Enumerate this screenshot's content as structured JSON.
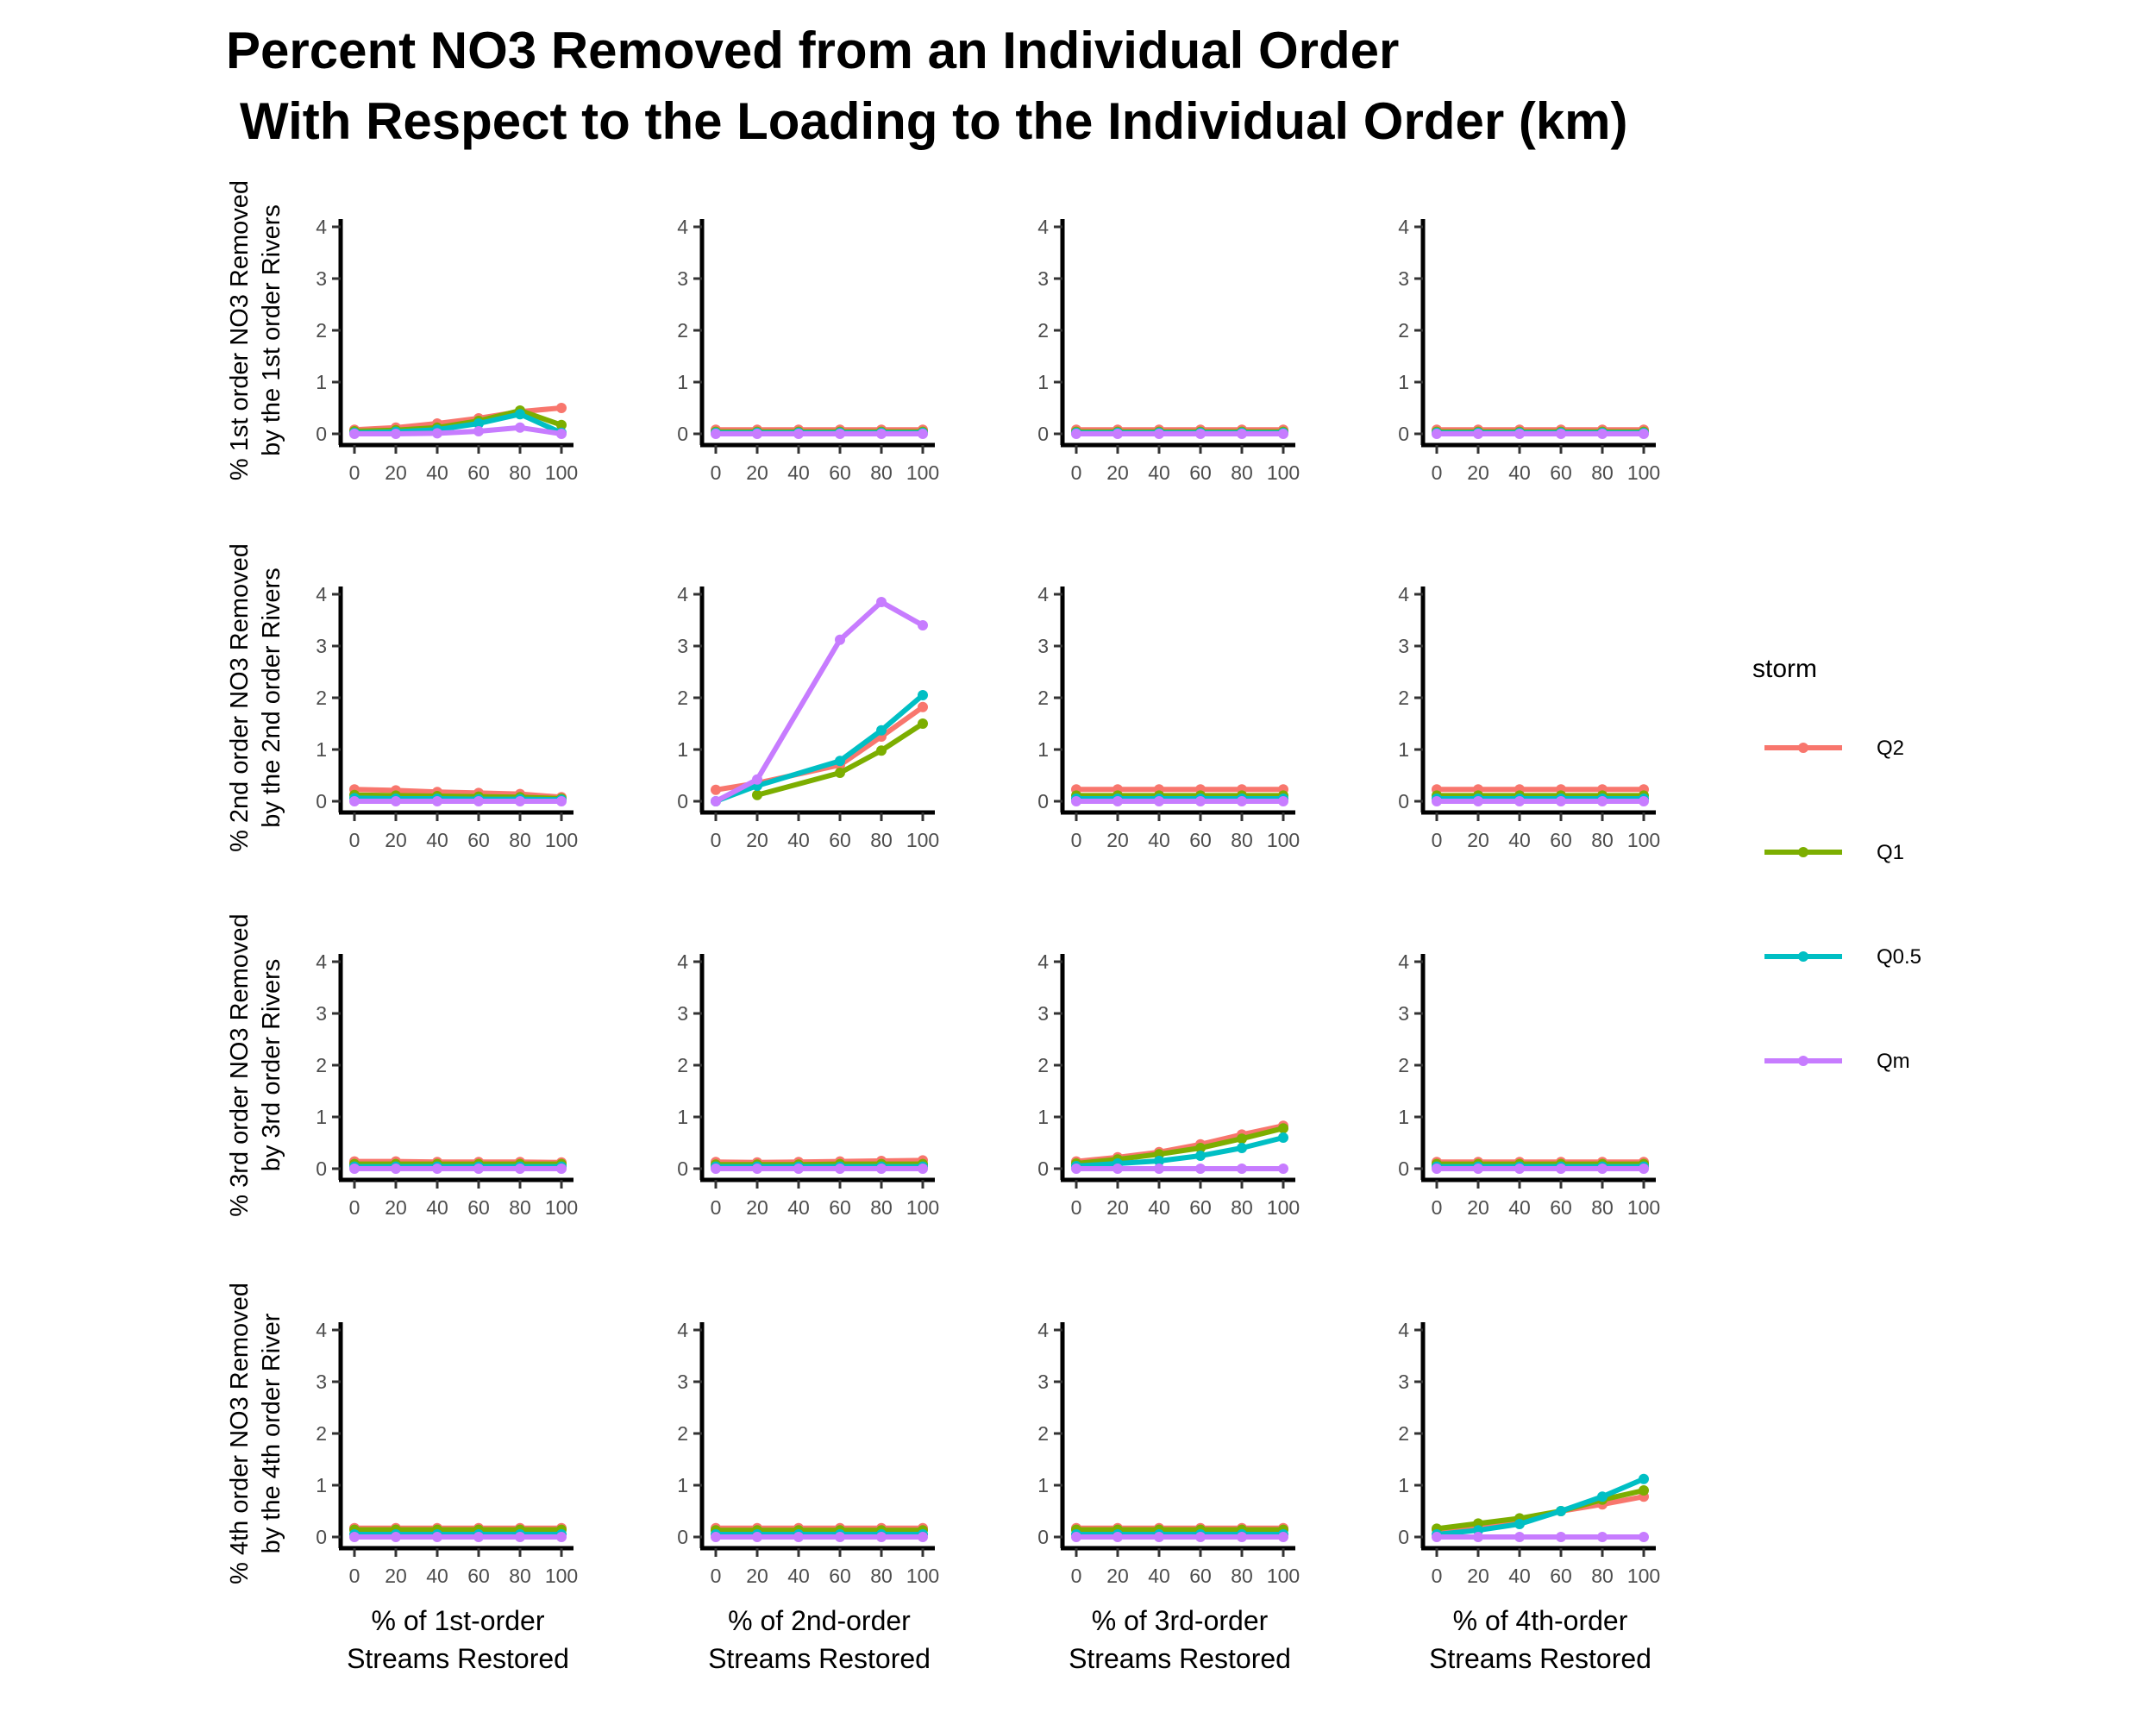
{
  "chart_data": {
    "type": "line",
    "title_line1": "Percent NO3 Removed from an Individual Order",
    "title_line2": "With Respect to the Loading to the Individual Order (km)",
    "x": [
      0,
      20,
      40,
      60,
      80,
      100
    ],
    "x_ticks": [
      "0",
      "20",
      "40",
      "60",
      "80",
      "100"
    ],
    "y_ticks": [
      "0",
      "1",
      "2",
      "3",
      "4"
    ],
    "ylim": [
      0,
      4
    ],
    "xlim": [
      0,
      100
    ],
    "grid": false,
    "legend": {
      "title": "storm",
      "placement": "right"
    },
    "series_meta": [
      {
        "name": "Q2",
        "color": "#F8766D"
      },
      {
        "name": "Q1",
        "color": "#7CAE00"
      },
      {
        "name": "Q0.5",
        "color": "#00BFC4"
      },
      {
        "name": "Qm",
        "color": "#C77CFF"
      }
    ],
    "row_labels": [
      [
        "% 1st order NO3 Removed",
        "by the 1st order Rivers"
      ],
      [
        "% 2nd order NO3 Removed",
        "by the 2nd order Rivers"
      ],
      [
        "% 3rd order NO3 Removed",
        "by 3rd order Rivers"
      ],
      [
        "% 4th order NO3 Removed",
        "by the 4th order River"
      ]
    ],
    "col_labels": [
      [
        "% of 1st-order",
        "Streams Restored"
      ],
      [
        "% of 2nd-order",
        "Streams Restored"
      ],
      [
        "% of 3rd-order",
        "Streams Restored"
      ],
      [
        "% of 4th-order",
        "Streams Restored"
      ]
    ],
    "panels": [
      [
        {
          "Q2": [
            0.08,
            0.12,
            0.2,
            0.3,
            0.43,
            0.5
          ],
          "Q1": [
            0.05,
            0.07,
            0.12,
            0.25,
            0.45,
            0.17
          ],
          "Q0.5": [
            0.02,
            0.04,
            0.08,
            0.2,
            0.38,
            0.02
          ],
          "Qm": [
            0.0,
            0.0,
            0.01,
            0.05,
            0.12,
            0.0
          ]
        },
        {
          "Q2": [
            0.08,
            0.08,
            0.08,
            0.08,
            0.08,
            0.08
          ],
          "Q1": [
            0.04,
            0.04,
            0.04,
            0.04,
            0.04,
            0.04
          ],
          "Q0.5": [
            0.02,
            0.02,
            0.02,
            0.02,
            0.02,
            0.02
          ],
          "Qm": [
            0.0,
            0.0,
            0.0,
            0.0,
            0.0,
            0.0
          ]
        },
        {
          "Q2": [
            0.08,
            0.08,
            0.08,
            0.08,
            0.08,
            0.08
          ],
          "Q1": [
            0.04,
            0.04,
            0.04,
            0.04,
            0.04,
            0.04
          ],
          "Q0.5": [
            0.02,
            0.02,
            0.02,
            0.02,
            0.02,
            0.02
          ],
          "Qm": [
            0.0,
            0.0,
            0.0,
            0.0,
            0.0,
            0.0
          ]
        },
        {
          "Q2": [
            0.08,
            0.08,
            0.08,
            0.08,
            0.08,
            0.08
          ],
          "Q1": [
            0.04,
            0.04,
            0.04,
            0.04,
            0.04,
            0.04
          ],
          "Q0.5": [
            0.02,
            0.02,
            0.02,
            0.02,
            0.02,
            0.02
          ],
          "Qm": [
            0.0,
            0.0,
            0.0,
            0.0,
            0.0,
            0.0
          ]
        }
      ],
      [
        {
          "Q2": [
            0.23,
            0.21,
            0.18,
            0.16,
            0.14,
            0.08
          ],
          "Q1": [
            0.12,
            0.11,
            0.1,
            0.09,
            0.08,
            0.05
          ],
          "Q0.5": [
            0.06,
            0.05,
            0.05,
            0.04,
            0.04,
            0.03
          ],
          "Qm": [
            0.0,
            0.0,
            0.0,
            0.0,
            0.0,
            0.0
          ]
        },
        {
          "Q2": [
            0.22,
            0.35,
            null,
            0.7,
            1.25,
            1.82
          ],
          "Q1": [
            null,
            0.12,
            null,
            0.55,
            0.98,
            1.5
          ],
          "Q0.5": [
            0.0,
            0.3,
            null,
            0.78,
            1.37,
            2.05
          ],
          "Qm": [
            0.0,
            0.42,
            null,
            3.12,
            3.85,
            3.4
          ]
        },
        {
          "Q2": [
            0.23,
            0.23,
            0.23,
            0.23,
            0.23,
            0.23
          ],
          "Q1": [
            0.11,
            0.11,
            0.11,
            0.11,
            0.11,
            0.11
          ],
          "Q0.5": [
            0.05,
            0.05,
            0.05,
            0.05,
            0.05,
            0.05
          ],
          "Qm": [
            0.0,
            0.0,
            0.0,
            0.0,
            0.0,
            0.0
          ]
        },
        {
          "Q2": [
            0.23,
            0.23,
            0.23,
            0.23,
            0.23,
            0.23
          ],
          "Q1": [
            0.11,
            0.11,
            0.11,
            0.11,
            0.11,
            0.11
          ],
          "Q0.5": [
            0.05,
            0.05,
            0.05,
            0.05,
            0.05,
            0.05
          ],
          "Qm": [
            0.0,
            0.0,
            0.0,
            0.0,
            0.0,
            0.0
          ]
        }
      ],
      [
        {
          "Q2": [
            0.14,
            0.14,
            0.13,
            0.13,
            0.13,
            0.12
          ],
          "Q1": [
            0.09,
            0.09,
            0.09,
            0.09,
            0.09,
            0.09
          ],
          "Q0.5": [
            0.04,
            0.04,
            0.04,
            0.04,
            0.04,
            0.04
          ],
          "Qm": [
            0.0,
            0.0,
            0.0,
            0.0,
            0.0,
            0.0
          ]
        },
        {
          "Q2": [
            0.13,
            0.12,
            0.13,
            0.14,
            0.15,
            0.16
          ],
          "Q1": [
            0.08,
            0.08,
            0.08,
            0.09,
            0.09,
            0.09
          ],
          "Q0.5": [
            0.04,
            0.04,
            0.04,
            0.04,
            0.04,
            0.04
          ],
          "Qm": [
            0.0,
            0.0,
            0.0,
            0.0,
            0.0,
            0.0
          ]
        },
        {
          "Q2": [
            0.14,
            0.22,
            0.32,
            0.47,
            0.66,
            0.83
          ],
          "Q1": [
            0.1,
            0.18,
            0.28,
            0.4,
            0.58,
            0.78
          ],
          "Q0.5": [
            0.05,
            0.1,
            0.15,
            0.25,
            0.4,
            0.6
          ],
          "Qm": [
            0.0,
            0.0,
            0.0,
            0.0,
            0.0,
            0.0
          ]
        },
        {
          "Q2": [
            0.13,
            0.13,
            0.13,
            0.13,
            0.13,
            0.13
          ],
          "Q1": [
            0.09,
            0.09,
            0.09,
            0.09,
            0.09,
            0.09
          ],
          "Q0.5": [
            0.04,
            0.04,
            0.04,
            0.04,
            0.04,
            0.04
          ],
          "Qm": [
            0.0,
            0.0,
            0.0,
            0.0,
            0.0,
            0.0
          ]
        }
      ],
      [
        {
          "Q2": [
            0.17,
            0.17,
            0.17,
            0.17,
            0.17,
            0.17
          ],
          "Q1": [
            0.14,
            0.14,
            0.14,
            0.14,
            0.14,
            0.14
          ],
          "Q0.5": [
            0.05,
            0.05,
            0.05,
            0.05,
            0.05,
            0.05
          ],
          "Qm": [
            0.0,
            0.0,
            0.0,
            0.0,
            0.0,
            0.0
          ]
        },
        {
          "Q2": [
            0.17,
            0.17,
            0.17,
            0.17,
            0.17,
            0.17
          ],
          "Q1": [
            0.13,
            0.13,
            0.13,
            0.13,
            0.13,
            0.13
          ],
          "Q0.5": [
            0.05,
            0.05,
            0.05,
            0.05,
            0.05,
            0.05
          ],
          "Qm": [
            0.0,
            0.0,
            0.0,
            0.0,
            0.0,
            0.0
          ]
        },
        {
          "Q2": [
            0.17,
            0.17,
            0.17,
            0.17,
            0.17,
            0.17
          ],
          "Q1": [
            0.14,
            0.14,
            0.14,
            0.14,
            0.14,
            0.14
          ],
          "Q0.5": [
            0.05,
            0.05,
            0.05,
            0.05,
            0.05,
            0.05
          ],
          "Qm": [
            0.0,
            0.0,
            0.0,
            0.0,
            0.0,
            0.0
          ]
        },
        {
          "Q2": [
            0.14,
            0.22,
            0.33,
            0.5,
            0.63,
            0.78
          ],
          "Q1": [
            0.16,
            0.26,
            0.36,
            0.5,
            0.72,
            0.9
          ],
          "Q0.5": [
            0.05,
            0.13,
            0.25,
            0.5,
            0.78,
            1.12
          ],
          "Qm": [
            0.0,
            0.0,
            0.0,
            0.0,
            0.0,
            0.0
          ]
        }
      ]
    ]
  }
}
